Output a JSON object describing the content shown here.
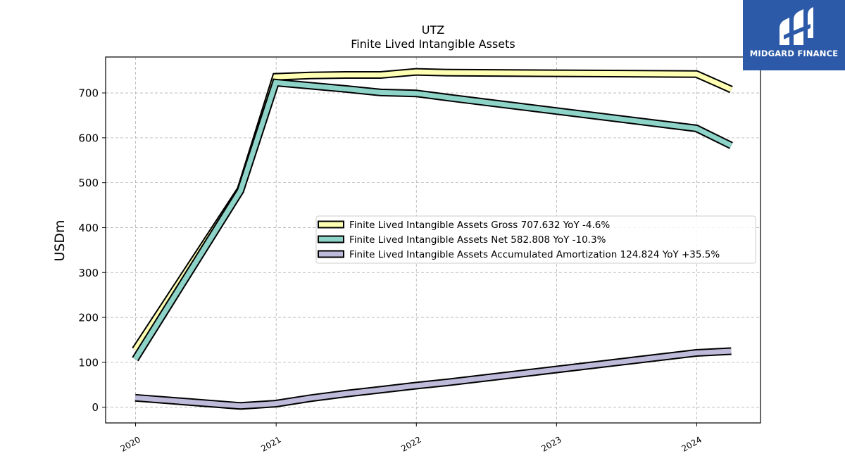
{
  "chart_data": {
    "type": "line",
    "title": "UTZ",
    "subtitle": "Finite Lived Intangible Assets",
    "xlabel": "",
    "ylabel": "USDm",
    "xlim": [
      "2019-10-15",
      "2024-06-15"
    ],
    "ylim": [
      -35,
      780
    ],
    "x_ticks": [
      "2020",
      "2021",
      "2022",
      "2023",
      "2024"
    ],
    "y_ticks": [
      0,
      100,
      200,
      300,
      400,
      500,
      600,
      700
    ],
    "grid": true,
    "legend_position": "center-right",
    "series": [
      {
        "name": "Finite Lived Intangible Assets Gross  707.632 YoY -4.6%",
        "color": "#ffffb3",
        "x": [
          "2019-12-31",
          "2020-09-30",
          "2020-12-31",
          "2021-03-31",
          "2021-06-30",
          "2021-09-30",
          "2021-12-31",
          "2022-03-31",
          "2023-12-31",
          "2024-03-31"
        ],
        "values": [
          128,
          485,
          736,
          739,
          740,
          740,
          747,
          745,
          742,
          707.632
        ]
      },
      {
        "name": "Finite Lived Intangible Assets Net  582.808 YoY -10.3%",
        "color": "#8dd3c7",
        "x": [
          "2019-12-31",
          "2020-09-30",
          "2020-12-31",
          "2021-03-31",
          "2021-06-30",
          "2021-09-30",
          "2021-12-31",
          "2022-03-31",
          "2023-12-31",
          "2024-03-31"
        ],
        "values": [
          107,
          482,
          723,
          716,
          709,
          701,
          699,
          689,
          621,
          582.808
        ]
      },
      {
        "name": "Finite Lived Intangible Assets Accumulated Amortization  124.824 YoY +35.5%",
        "color": "#bebada",
        "x": [
          "2019-12-31",
          "2020-09-30",
          "2020-12-31",
          "2021-03-31",
          "2021-06-30",
          "2021-09-30",
          "2021-12-31",
          "2022-03-31",
          "2023-12-31",
          "2024-03-31"
        ],
        "values": [
          21,
          3,
          8,
          20,
          30,
          39,
          48,
          56,
          121,
          124.824
        ]
      }
    ]
  },
  "logo": {
    "text": "MIDGARD FINANCE"
  }
}
